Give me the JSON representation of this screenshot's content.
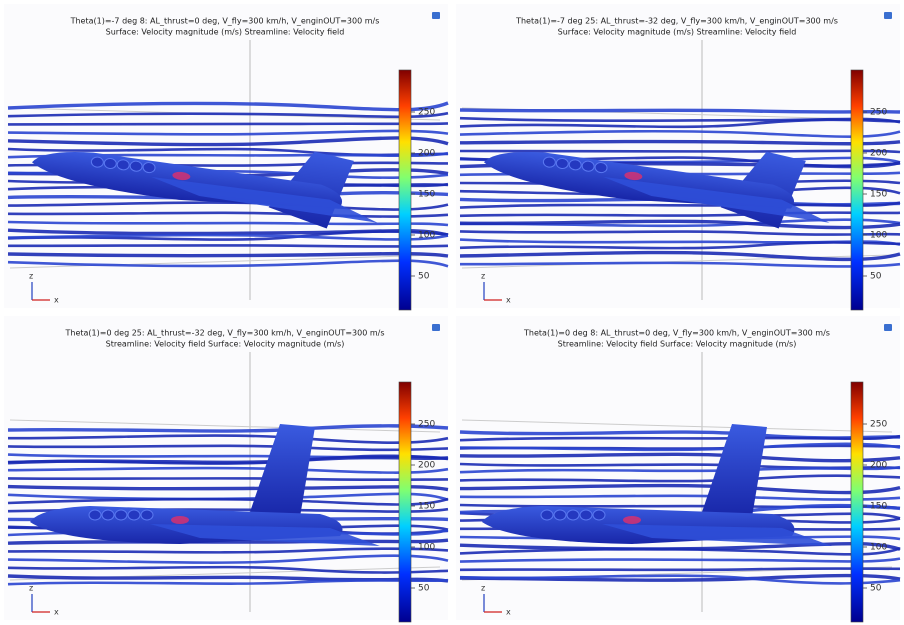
{
  "panels": [
    {
      "title": "Theta(1)=-7 deg 8: AL_thrust=0 deg, V_fly=300 km/h, V_enginOUT=300 m/s",
      "subtitle": "Surface: Velocity magnitude (m/s)  Streamline: Velocity field",
      "colorbar_ticks": [
        250,
        200,
        150,
        100,
        50
      ],
      "axis_vertical": "z",
      "axis_horizontal": "x"
    },
    {
      "title": "Theta(1)=-7 deg 25: AL_thrust=-32 deg, V_fly=300 km/h, V_enginOUT=300 m/s",
      "subtitle": "Surface: Velocity magnitude (m/s)  Streamline: Velocity field",
      "colorbar_ticks": [
        250,
        200,
        150,
        100,
        50
      ],
      "axis_vertical": "z",
      "axis_horizontal": "x"
    },
    {
      "title": "Theta(1)=0 deg 25: AL_thrust=-32 deg, V_fly=300 km/h, V_enginOUT=300 m/s",
      "subtitle": "Streamline: Velocity field  Surface: Velocity magnitude (m/s)",
      "colorbar_ticks": [
        250,
        200,
        150,
        100,
        50
      ],
      "axis_vertical": "z",
      "axis_horizontal": "x"
    },
    {
      "title": "Theta(1)=0 deg 8: AL_thrust=0 deg, V_fly=300 km/h, V_enginOUT=300 m/s",
      "subtitle": "Streamline: Velocity field  Surface: Velocity magnitude (m/s)",
      "colorbar_ticks": [
        250,
        200,
        150,
        100,
        50
      ],
      "axis_vertical": "z",
      "axis_horizontal": "x"
    }
  ]
}
